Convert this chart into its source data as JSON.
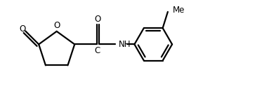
{
  "bg_color": "#ffffff",
  "line_color": "#000000",
  "text_color": "#000000",
  "line_width": 1.6,
  "font_size": 8.5,
  "figsize": [
    3.73,
    1.33
  ],
  "dpi": 100,
  "xlim": [
    0.0,
    7.2
  ],
  "ylim": [
    -1.1,
    1.3
  ]
}
